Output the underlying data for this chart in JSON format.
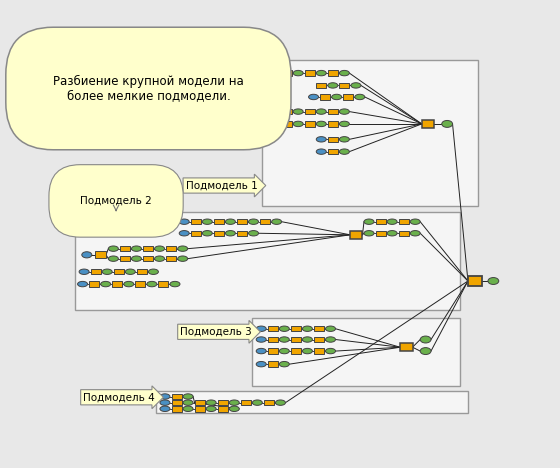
{
  "title": "Разбиение крупной модели на\nболее мелкие подмодели.",
  "submodel_labels": [
    "Подмодель 1",
    "Подмодель 2",
    "Подмодель 3",
    "Подмодель 4"
  ],
  "bg_color": "#e8e8e8",
  "box_bg": "#f5f5f5",
  "title_bg": "#ffffcc",
  "label_bg": "#ffffcc",
  "node_orange": "#f0a500",
  "node_green": "#6ab04c",
  "node_blue": "#4a90c4",
  "node_border": "#555555",
  "line_color": "#222222",
  "nw": 13,
  "nh": 7,
  "g": 2
}
